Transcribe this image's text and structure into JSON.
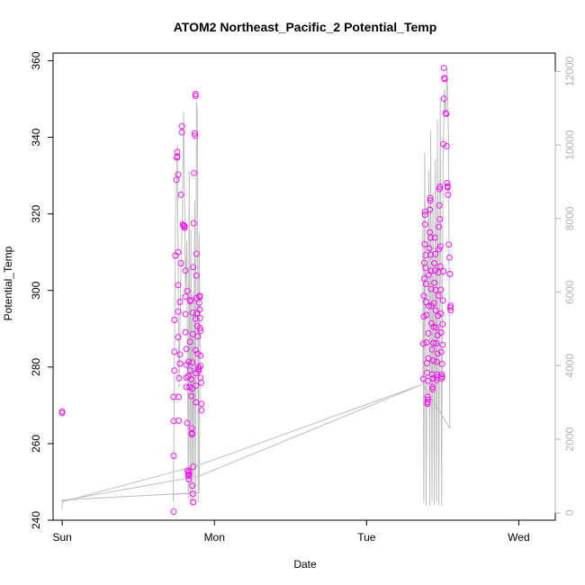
{
  "chart_data": {
    "type": "scatter",
    "title": "ATOM2 Northeast_Pacific_2 Potential_Temp",
    "xlabel": "Date",
    "ylabel": "Potential_Temp",
    "x_ticks": [
      "Sun",
      "Mon",
      "Tue",
      "Wed"
    ],
    "xlim": [
      -0.02,
      1.08
    ],
    "ylim": [
      240,
      362
    ],
    "y_ticks": [
      240,
      260,
      280,
      300,
      320,
      340,
      360
    ],
    "y2lim": [
      -200,
      12500
    ],
    "y2_ticks": [
      0,
      2000,
      4000,
      6000,
      8000,
      10000,
      12000
    ],
    "colors": {
      "points": "#ff00ff",
      "line": "#bebebe",
      "axis_right": "#b3b3b3",
      "frame": "#000000"
    },
    "series": [
      {
        "kind": "points",
        "points": [
          [
            0.0,
            268.4
          ],
          [
            0.0,
            268.0
          ],
          [
            0.244,
            242.2
          ],
          [
            0.244,
            256.8
          ],
          [
            0.244,
            265.9
          ],
          [
            0.244,
            272.2
          ],
          [
            0.246,
            279.1
          ],
          [
            0.246,
            284.0
          ],
          [
            0.246,
            292.3
          ],
          [
            0.248,
            309.1
          ],
          [
            0.25,
            328.9
          ],
          [
            0.251,
            334.7
          ],
          [
            0.252,
            335.0
          ],
          [
            0.252,
            336.2
          ],
          [
            0.254,
            330.3
          ],
          [
            0.254,
            310.0
          ],
          [
            0.254,
            301.4
          ],
          [
            0.254,
            294.5
          ],
          [
            0.254,
            287.8
          ],
          [
            0.255,
            272.2
          ],
          [
            0.255,
            266.0
          ],
          [
            0.256,
            277.1
          ],
          [
            0.258,
            280.9
          ],
          [
            0.258,
            283.3
          ],
          [
            0.258,
            297.0
          ],
          [
            0.26,
            307.1
          ],
          [
            0.26,
            325.0
          ],
          [
            0.262,
            341.3
          ],
          [
            0.262,
            342.9
          ],
          [
            0.264,
            317.2
          ],
          [
            0.266,
            317.0
          ],
          [
            0.268,
            316.4
          ],
          [
            0.268,
            316.8
          ],
          [
            0.27,
            305.2
          ],
          [
            0.27,
            298.4
          ],
          [
            0.27,
            293.8
          ],
          [
            0.27,
            289.1
          ],
          [
            0.272,
            284.7
          ],
          [
            0.272,
            280.6
          ],
          [
            0.272,
            277.2
          ],
          [
            0.272,
            274.8
          ],
          [
            0.274,
            265.4
          ],
          [
            0.275,
            253.0
          ],
          [
            0.276,
            252.3
          ],
          [
            0.276,
            251.6
          ],
          [
            0.277,
            250.7
          ],
          [
            0.278,
            251.9
          ],
          [
            0.278,
            252.7
          ],
          [
            0.279,
            274.8
          ],
          [
            0.28,
            279.1
          ],
          [
            0.28,
            286.6
          ],
          [
            0.28,
            297.2
          ],
          [
            0.282,
            297.5
          ],
          [
            0.283,
            276.8
          ],
          [
            0.283,
            272.4
          ],
          [
            0.284,
            264.0
          ],
          [
            0.284,
            262.8
          ],
          [
            0.284,
            262.4
          ],
          [
            0.285,
            274.4
          ],
          [
            0.285,
            281.2
          ],
          [
            0.286,
            288.6
          ],
          [
            0.286,
            294.2
          ],
          [
            0.287,
            306.1
          ],
          [
            0.288,
            317.6
          ],
          [
            0.289,
            330.7
          ],
          [
            0.29,
            341.0
          ],
          [
            0.291,
            340.4
          ],
          [
            0.292,
            350.8
          ],
          [
            0.292,
            351.3
          ],
          [
            0.292,
            292.6
          ],
          [
            0.292,
            284.4
          ],
          [
            0.293,
            278.4
          ],
          [
            0.293,
            275.2
          ],
          [
            0.293,
            270.8
          ],
          [
            0.294,
            309.6
          ],
          [
            0.294,
            303.9
          ],
          [
            0.294,
            298.0
          ],
          [
            0.295,
            294.1
          ],
          [
            0.296,
            290.7
          ],
          [
            0.297,
            288.0
          ],
          [
            0.297,
            283.5
          ],
          [
            0.298,
            280.0
          ],
          [
            0.299,
            279.5
          ],
          [
            0.299,
            279.0
          ],
          [
            0.3,
            296.8
          ],
          [
            0.301,
            298.6
          ],
          [
            0.301,
            298.3
          ],
          [
            0.301,
            295.0
          ],
          [
            0.302,
            292.8
          ],
          [
            0.302,
            290.2
          ],
          [
            0.303,
            289.5
          ],
          [
            0.303,
            283.0
          ],
          [
            0.303,
            280.3
          ],
          [
            0.303,
            277.2
          ],
          [
            0.304,
            275.9
          ],
          [
            0.305,
            270.4
          ],
          [
            0.305,
            268.7
          ],
          [
            0.287,
            254.0
          ],
          [
            0.285,
            249.0
          ],
          [
            0.286,
            246.9
          ],
          [
            0.287,
            244.7
          ],
          [
            0.276,
            277.6
          ],
          [
            0.277,
            281.4
          ],
          [
            0.274,
            299.9
          ],
          [
            0.791,
            276.9
          ],
          [
            0.791,
            286.1
          ],
          [
            0.792,
            293.2
          ],
          [
            0.792,
            298.6
          ],
          [
            0.793,
            303.1
          ],
          [
            0.793,
            307.2
          ],
          [
            0.794,
            312.1
          ],
          [
            0.795,
            319.8
          ],
          [
            0.795,
            320.6
          ],
          [
            0.795,
            317.3
          ],
          [
            0.796,
            309.2
          ],
          [
            0.796,
            305.9
          ],
          [
            0.797,
            301.7
          ],
          [
            0.797,
            297.0
          ],
          [
            0.798,
            293.6
          ],
          [
            0.798,
            286.4
          ],
          [
            0.799,
            281.0
          ],
          [
            0.799,
            278.5
          ],
          [
            0.8,
            272.2
          ],
          [
            0.8,
            270.8
          ],
          [
            0.8,
            270.4
          ],
          [
            0.801,
            271.5
          ],
          [
            0.801,
            276.4
          ],
          [
            0.802,
            282.3
          ],
          [
            0.802,
            288.8
          ],
          [
            0.803,
            295.9
          ],
          [
            0.803,
            304.1
          ],
          [
            0.804,
            311.0
          ],
          [
            0.805,
            315.2
          ],
          [
            0.805,
            321.1
          ],
          [
            0.806,
            324.1
          ],
          [
            0.806,
            323.5
          ],
          [
            0.807,
            313.8
          ],
          [
            0.807,
            309.3
          ],
          [
            0.808,
            305.1
          ],
          [
            0.808,
            300.4
          ],
          [
            0.809,
            296.0
          ],
          [
            0.809,
            291.4
          ],
          [
            0.81,
            284.6
          ],
          [
            0.81,
            278.1
          ],
          [
            0.811,
            274.2
          ],
          [
            0.811,
            274.8
          ],
          [
            0.812,
            277.0
          ],
          [
            0.813,
            281.7
          ],
          [
            0.813,
            286.3
          ],
          [
            0.814,
            290.5
          ],
          [
            0.814,
            296.7
          ],
          [
            0.815,
            302.0
          ],
          [
            0.815,
            307.1
          ],
          [
            0.816,
            313.8
          ],
          [
            0.817,
            309.5
          ],
          [
            0.817,
            305.2
          ],
          [
            0.818,
            300.1
          ],
          [
            0.818,
            294.8
          ],
          [
            0.819,
            290.3
          ],
          [
            0.819,
            286.2
          ],
          [
            0.82,
            281.4
          ],
          [
            0.82,
            276.6
          ],
          [
            0.821,
            277.3
          ],
          [
            0.821,
            278.0
          ],
          [
            0.822,
            283.5
          ],
          [
            0.822,
            288.3
          ],
          [
            0.823,
            293.4
          ],
          [
            0.824,
            298.6
          ],
          [
            0.824,
            304.7
          ],
          [
            0.825,
            310.8
          ],
          [
            0.825,
            316.6
          ],
          [
            0.826,
            322.2
          ],
          [
            0.826,
            326.5
          ],
          [
            0.827,
            327.1
          ],
          [
            0.827,
            318.6
          ],
          [
            0.828,
            311.5
          ],
          [
            0.828,
            306.3
          ],
          [
            0.829,
            300.2
          ],
          [
            0.829,
            294.0
          ],
          [
            0.83,
            289.0
          ],
          [
            0.83,
            283.9
          ],
          [
            0.831,
            278.1
          ],
          [
            0.831,
            277.0
          ],
          [
            0.832,
            277.5
          ],
          [
            0.832,
            280.8
          ],
          [
            0.833,
            285.8
          ],
          [
            0.833,
            291.2
          ],
          [
            0.834,
            297.4
          ],
          [
            0.835,
            305.0
          ],
          [
            0.835,
            338.2
          ],
          [
            0.836,
            350.1
          ],
          [
            0.836,
            358.1
          ],
          [
            0.837,
            355.5
          ],
          [
            0.838,
            355.2
          ],
          [
            0.84,
            346.3
          ],
          [
            0.841,
            346.1
          ],
          [
            0.842,
            337.7
          ],
          [
            0.843,
            328.0
          ],
          [
            0.844,
            327.2
          ],
          [
            0.844,
            326.9
          ],
          [
            0.845,
            325.0
          ],
          [
            0.847,
            312.0
          ],
          [
            0.848,
            308.6
          ],
          [
            0.849,
            304.3
          ],
          [
            0.851,
            296.0
          ],
          [
            0.851,
            294.8
          ],
          [
            0.85,
            295.5
          ]
        ]
      },
      {
        "kind": "line",
        "points": [
          [
            0.0,
            300
          ],
          [
            0.0,
            100
          ],
          [
            0.0,
            330
          ],
          [
            0.3,
            1000
          ],
          [
            0.79,
            3500
          ],
          [
            0.79,
            8200
          ],
          [
            0.792,
            300
          ],
          [
            0.794,
            9800
          ],
          [
            0.797,
            200
          ],
          [
            0.8,
            5600
          ],
          [
            0.803,
            9300
          ],
          [
            0.805,
            200
          ],
          [
            0.807,
            10400
          ],
          [
            0.81,
            300
          ],
          [
            0.812,
            8700
          ],
          [
            0.815,
            200
          ],
          [
            0.817,
            9600
          ],
          [
            0.82,
            300
          ],
          [
            0.822,
            10700
          ],
          [
            0.825,
            200
          ],
          [
            0.828,
            11300
          ],
          [
            0.831,
            200
          ],
          [
            0.834,
            9400
          ],
          [
            0.837,
            11500
          ],
          [
            0.84,
            10800
          ],
          [
            0.843,
            12100
          ],
          [
            0.846,
            10200
          ],
          [
            0.849,
            2300
          ],
          [
            0.849,
            2300
          ],
          [
            0.79,
            3500
          ],
          [
            0.3,
            1300
          ],
          [
            0.0,
            300
          ],
          [
            0.0,
            350
          ],
          [
            0.3,
            550
          ],
          [
            0.302,
            4300
          ],
          [
            0.3,
            7600
          ],
          [
            0.298,
            300
          ],
          [
            0.296,
            10800
          ],
          [
            0.294,
            11200
          ],
          [
            0.292,
            400
          ],
          [
            0.29,
            8500
          ],
          [
            0.288,
            300
          ],
          [
            0.286,
            6000
          ],
          [
            0.284,
            200
          ],
          [
            0.282,
            7700
          ],
          [
            0.28,
            300
          ],
          [
            0.278,
            9300
          ],
          [
            0.276,
            400
          ],
          [
            0.273,
            7400
          ],
          [
            0.27,
            6000
          ],
          [
            0.268,
            8600
          ],
          [
            0.266,
            10900
          ],
          [
            0.263,
            8000
          ],
          [
            0.26,
            6600
          ],
          [
            0.256,
            3400
          ],
          [
            0.252,
            10000
          ],
          [
            0.248,
            7600
          ],
          [
            0.245,
            2500
          ],
          [
            0.243,
            300
          ],
          [
            0.244,
            500
          ],
          [
            0.3,
            550
          ]
        ]
      }
    ]
  }
}
